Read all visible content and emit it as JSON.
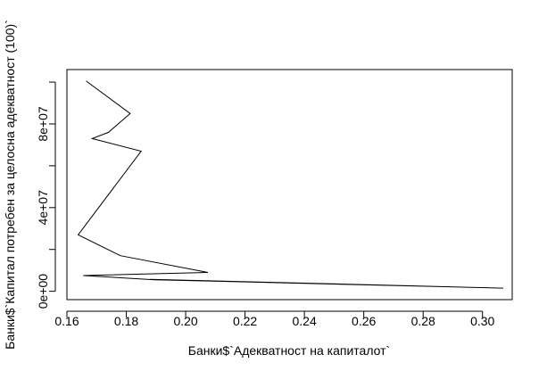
{
  "chart_data": {
    "type": "line",
    "title": "",
    "xlabel": "Банки$`Адекватност на капиталот`",
    "ylabel": "Банки$`Капитал потребен за целосна адекватност (100)`",
    "xlim": [
      0.16,
      0.31
    ],
    "ylim": [
      -4000000,
      106000000
    ],
    "x_ticks": [
      0.16,
      0.18,
      0.2,
      0.22,
      0.24,
      0.26,
      0.28,
      0.3
    ],
    "x_tick_labels": [
      "0.16",
      "0.18",
      "0.20",
      "0.22",
      "0.24",
      "0.26",
      "0.28",
      "0.30"
    ],
    "y_ticks": [
      0,
      20000000,
      40000000,
      60000000,
      80000000,
      100000000
    ],
    "y_tick_labels": [
      "0e+00",
      "",
      "4e+07",
      "",
      "8e+07",
      ""
    ],
    "grid": false,
    "legend": "none",
    "line_color": "#000000",
    "series": [
      {
        "x": [
          0.1665,
          0.1813,
          0.174,
          0.1685,
          0.185,
          0.1638,
          0.178,
          0.2075,
          0.1655,
          0.1895,
          0.307,
          0.188
        ],
        "y": [
          100500000,
          85000000,
          76000000,
          73000000,
          67000000,
          27000000,
          17000000,
          9000000,
          7500000,
          5500000,
          1500000,
          5700000
        ]
      }
    ]
  }
}
